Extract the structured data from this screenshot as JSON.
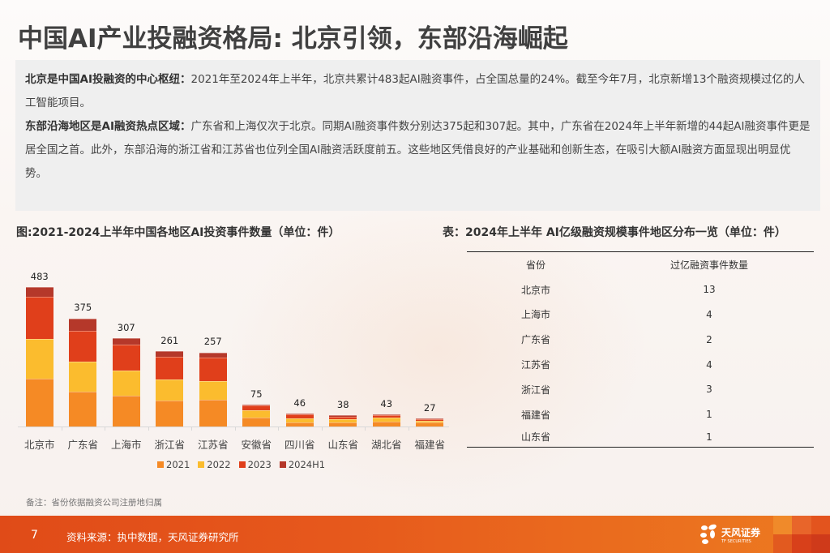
{
  "title": "中国AI产业投融资格局: 北京引领，东部沿海崛起",
  "summary": {
    "para1_bold": "北京是中国AI投融资的中心枢纽：",
    "para1_text": "2021年至2024年上半年，北京共累计483起AI融资事件，占全国总量的24%。截至今年7月，北京新增13个融资规模过亿的人工智能项目。",
    "para2_bold": "东部沿海地区是AI融资热点区域：",
    "para2_text": "广东省和上海仅次于北京。同期AI融资事件数分别达375起和307起。其中，广东省在2024年上半年新增的44起AI融资事件更是居全国之首。此外，东部沿海的浙江省和江苏省也位列全国AI融资活跃度前五。这些地区凭借良好的产业基础和创新生态，在吸引大额AI融资方面显现出明显优势。"
  },
  "figure": {
    "title": "图:2021-2024上半年中国各地区AI投资事件数量（单位：件）"
  },
  "chart_data": {
    "type": "bar",
    "stacked": true,
    "title": "图:2021-2024上半年中国各地区AI投资事件数量（单位：件）",
    "xlabel": "",
    "ylabel": "",
    "categories": [
      "北京市",
      "广东省",
      "上海市",
      "浙江省",
      "江苏省",
      "安徽省",
      "四川省",
      "山东省",
      "湖北省",
      "福建省"
    ],
    "totals": [
      483,
      375,
      307,
      261,
      257,
      75,
      46,
      38,
      43,
      27
    ],
    "series": [
      {
        "name": "2021",
        "color": "#f58a25",
        "values": [
          166,
          120,
          108,
          89,
          92,
          30,
          15,
          14,
          18,
          13
        ]
      },
      {
        "name": "2022",
        "color": "#fbbc2e",
        "values": [
          138,
          104,
          85,
          73,
          66,
          25,
          14,
          12,
          12,
          7
        ]
      },
      {
        "name": "2023",
        "color": "#e03f1b",
        "values": [
          146,
          107,
          91,
          79,
          81,
          17,
          14,
          9,
          10,
          5
        ]
      },
      {
        "name": "2024H1",
        "color": "#b5382a",
        "values": [
          33,
          44,
          23,
          20,
          18,
          3,
          3,
          3,
          3,
          2
        ]
      }
    ],
    "legend_position": "bottom",
    "grid": false
  },
  "table": {
    "title": "表：2024年上半年 AI亿级融资规模事件地区分布一览（单位：件）",
    "headers": [
      "省份",
      "过亿融资事件数量"
    ],
    "rows": [
      [
        "北京市",
        "13"
      ],
      [
        "上海市",
        "4"
      ],
      [
        "广东省",
        "2"
      ],
      [
        "江苏省",
        "4"
      ],
      [
        "浙江省",
        "3"
      ],
      [
        "福建省",
        "1"
      ],
      [
        "山东省",
        "1"
      ]
    ]
  },
  "note": "备注：省份依据融资公司注册地归属",
  "footer": {
    "page_number": "7",
    "source": "资料来源：执中数据，天风证券研究所",
    "logo_cn": "天风证券",
    "logo_en": "TF SECURITIES",
    "tile_colors": [
      "#f08a2a",
      "#e8652a",
      "#e3541e",
      "#e25a1f",
      "#d8401a",
      "#cf3a1a"
    ]
  }
}
